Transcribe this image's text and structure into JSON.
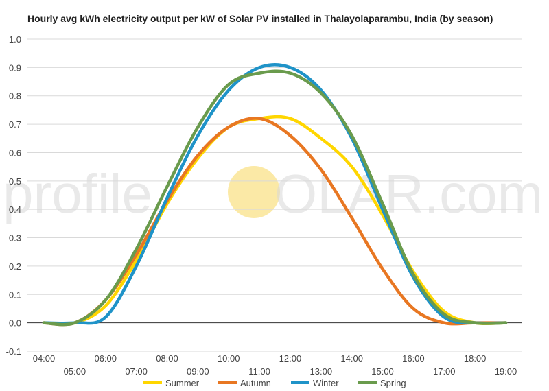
{
  "chart_data": {
    "type": "line",
    "title": "Hourly avg kWh electricity output per kW of Solar PV installed in Thalayolaparambu, India (by season)",
    "xlabel": "",
    "ylabel": "",
    "ylim": [
      -0.1,
      1.0
    ],
    "yticks": [
      "-0.1",
      "0.0",
      "0.1",
      "0.2",
      "0.3",
      "0.4",
      "0.5",
      "0.6",
      "0.7",
      "0.8",
      "0.9",
      "1.0"
    ],
    "grid": true,
    "legend_position": "bottom",
    "x": [
      "04:00",
      "05:00",
      "06:00",
      "07:00",
      "08:00",
      "09:00",
      "10:00",
      "11:00",
      "12:00",
      "13:00",
      "14:00",
      "15:00",
      "16:00",
      "17:00",
      "18:00",
      "19:00"
    ],
    "series": [
      {
        "name": "Summer",
        "color": "#ffd600",
        "values": [
          0.0,
          0.0,
          0.06,
          0.22,
          0.42,
          0.58,
          0.69,
          0.72,
          0.72,
          0.65,
          0.55,
          0.38,
          0.18,
          0.04,
          0.0,
          0.0
        ]
      },
      {
        "name": "Autumn",
        "color": "#e87722",
        "values": [
          0.0,
          0.0,
          0.08,
          0.24,
          0.43,
          0.59,
          0.69,
          0.72,
          0.66,
          0.54,
          0.37,
          0.19,
          0.05,
          0.0,
          0.0,
          0.0
        ]
      },
      {
        "name": "Winter",
        "color": "#1f93c8",
        "values": [
          0.0,
          0.0,
          0.02,
          0.2,
          0.44,
          0.66,
          0.82,
          0.9,
          0.9,
          0.82,
          0.65,
          0.4,
          0.16,
          0.02,
          0.0,
          0.0
        ]
      },
      {
        "name": "Spring",
        "color": "#6a9b4d",
        "values": [
          0.0,
          0.0,
          0.08,
          0.26,
          0.48,
          0.69,
          0.84,
          0.88,
          0.88,
          0.81,
          0.66,
          0.42,
          0.17,
          0.03,
          0.0,
          0.0
        ]
      }
    ]
  },
  "watermark": {
    "left": "profile",
    "right": "OLAR.com",
    "sun_color": "#fbe9a6"
  }
}
